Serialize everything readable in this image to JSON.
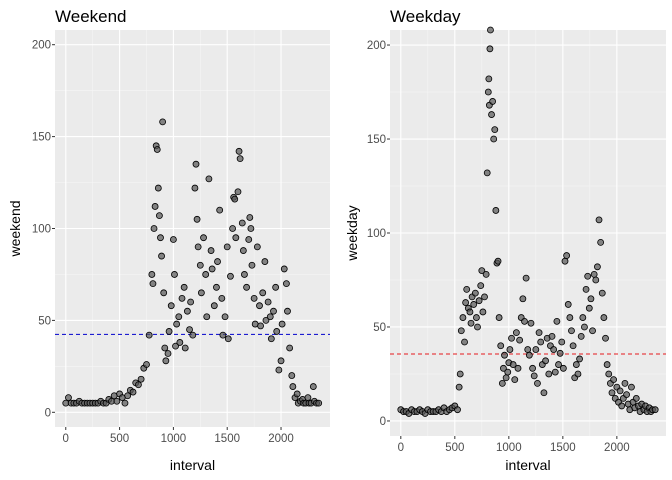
{
  "panels": [
    {
      "id": "weekend",
      "title": "Weekend",
      "xlabel": "interval",
      "ylabel": "weekend",
      "mean_line_color": "#0000cc",
      "x_ticks": [
        "0",
        "500",
        "1000",
        "1500",
        "2000"
      ],
      "y_ticks": [
        "0",
        "50",
        "100",
        "150",
        "200"
      ]
    },
    {
      "id": "weekday",
      "title": "Weekday",
      "xlabel": "interval",
      "ylabel": "weekday",
      "mean_line_color": "#e41a1c",
      "x_ticks": [
        "0",
        "500",
        "1000",
        "1500",
        "2000"
      ],
      "y_ticks": [
        "0",
        "50",
        "100",
        "150",
        "200"
      ]
    }
  ],
  "chart_data": [
    {
      "type": "scatter",
      "title": "Weekend",
      "xlabel": "interval",
      "ylabel": "weekend",
      "xlim": [
        -100,
        2455
      ],
      "ylim": [
        -8,
        208
      ],
      "x_ticks": [
        0,
        500,
        1000,
        1500,
        2000
      ],
      "y_ticks": [
        0,
        50,
        100,
        150,
        200
      ],
      "grid": true,
      "background": "#ebebeb",
      "point_color": "#555555",
      "mean_line": {
        "y": 42.4,
        "color": "#0000cc",
        "style": "dashed"
      },
      "points": [
        [
          0,
          5
        ],
        [
          25,
          8
        ],
        [
          50,
          5
        ],
        [
          75,
          5
        ],
        [
          100,
          5
        ],
        [
          125,
          6
        ],
        [
          150,
          5
        ],
        [
          175,
          5
        ],
        [
          200,
          5
        ],
        [
          225,
          5
        ],
        [
          250,
          5
        ],
        [
          275,
          5
        ],
        [
          300,
          5
        ],
        [
          325,
          6
        ],
        [
          350,
          5
        ],
        [
          375,
          5
        ],
        [
          400,
          7
        ],
        [
          425,
          6
        ],
        [
          450,
          9
        ],
        [
          475,
          6
        ],
        [
          500,
          10
        ],
        [
          525,
          8
        ],
        [
          550,
          5
        ],
        [
          575,
          9
        ],
        [
          600,
          12
        ],
        [
          625,
          11
        ],
        [
          650,
          16
        ],
        [
          675,
          15
        ],
        [
          700,
          18
        ],
        [
          725,
          24
        ],
        [
          750,
          26
        ],
        [
          775,
          42
        ],
        [
          800,
          75
        ],
        [
          810,
          70
        ],
        [
          820,
          100
        ],
        [
          830,
          112
        ],
        [
          840,
          145
        ],
        [
          850,
          143
        ],
        [
          860,
          122
        ],
        [
          870,
          107
        ],
        [
          880,
          95
        ],
        [
          890,
          85
        ],
        [
          900,
          158
        ],
        [
          910,
          65
        ],
        [
          920,
          35
        ],
        [
          930,
          28
        ],
        [
          950,
          32
        ],
        [
          960,
          44
        ],
        [
          980,
          58
        ],
        [
          1000,
          94
        ],
        [
          1010,
          75
        ],
        [
          1020,
          36
        ],
        [
          1030,
          48
        ],
        [
          1050,
          52
        ],
        [
          1060,
          38
        ],
        [
          1080,
          62
        ],
        [
          1100,
          68
        ],
        [
          1110,
          35
        ],
        [
          1130,
          55
        ],
        [
          1150,
          45
        ],
        [
          1160,
          60
        ],
        [
          1180,
          42
        ],
        [
          1200,
          122
        ],
        [
          1210,
          135
        ],
        [
          1220,
          105
        ],
        [
          1230,
          90
        ],
        [
          1250,
          80
        ],
        [
          1260,
          65
        ],
        [
          1280,
          95
        ],
        [
          1300,
          75
        ],
        [
          1310,
          52
        ],
        [
          1330,
          127
        ],
        [
          1350,
          88
        ],
        [
          1360,
          78
        ],
        [
          1380,
          58
        ],
        [
          1400,
          68
        ],
        [
          1410,
          82
        ],
        [
          1430,
          110
        ],
        [
          1450,
          62
        ],
        [
          1460,
          42
        ],
        [
          1480,
          52
        ],
        [
          1500,
          90
        ],
        [
          1510,
          40
        ],
        [
          1530,
          74
        ],
        [
          1550,
          100
        ],
        [
          1560,
          117
        ],
        [
          1570,
          116
        ],
        [
          1580,
          95
        ],
        [
          1600,
          120
        ],
        [
          1610,
          142
        ],
        [
          1620,
          138
        ],
        [
          1640,
          103
        ],
        [
          1650,
          88
        ],
        [
          1660,
          75
        ],
        [
          1680,
          68
        ],
        [
          1700,
          94
        ],
        [
          1710,
          106
        ],
        [
          1720,
          100
        ],
        [
          1730,
          80
        ],
        [
          1750,
          62
        ],
        [
          1760,
          48
        ],
        [
          1780,
          90
        ],
        [
          1800,
          58
        ],
        [
          1810,
          47
        ],
        [
          1830,
          65
        ],
        [
          1850,
          82
        ],
        [
          1860,
          50
        ],
        [
          1880,
          60
        ],
        [
          1900,
          52
        ],
        [
          1910,
          40
        ],
        [
          1930,
          55
        ],
        [
          1950,
          68
        ],
        [
          1960,
          44
        ],
        [
          1980,
          23
        ],
        [
          2000,
          28
        ],
        [
          2010,
          48
        ],
        [
          2030,
          78
        ],
        [
          2050,
          70
        ],
        [
          2060,
          55
        ],
        [
          2080,
          35
        ],
        [
          2100,
          20
        ],
        [
          2110,
          14
        ],
        [
          2130,
          8
        ],
        [
          2150,
          10
        ],
        [
          2160,
          5
        ],
        [
          2180,
          6
        ],
        [
          2200,
          7
        ],
        [
          2210,
          5
        ],
        [
          2230,
          5
        ],
        [
          2250,
          8
        ],
        [
          2260,
          5
        ],
        [
          2280,
          5
        ],
        [
          2300,
          14
        ],
        [
          2310,
          6
        ],
        [
          2330,
          5
        ],
        [
          2350,
          5
        ]
      ]
    },
    {
      "type": "scatter",
      "title": "Weekday",
      "xlabel": "interval",
      "ylabel": "weekday",
      "xlim": [
        -100,
        2455
      ],
      "ylim": [
        -8,
        208
      ],
      "x_ticks": [
        0,
        500,
        1000,
        1500,
        2000
      ],
      "y_ticks": [
        0,
        50,
        100,
        150,
        200
      ],
      "grid": true,
      "background": "#ebebeb",
      "point_color": "#555555",
      "mean_line": {
        "y": 35.6,
        "color": "#e41a1c",
        "style": "dashed"
      },
      "points": [
        [
          0,
          6
        ],
        [
          25,
          5
        ],
        [
          50,
          5
        ],
        [
          75,
          4
        ],
        [
          100,
          6
        ],
        [
          125,
          5
        ],
        [
          150,
          5
        ],
        [
          175,
          6
        ],
        [
          200,
          5
        ],
        [
          225,
          4
        ],
        [
          250,
          6
        ],
        [
          275,
          5
        ],
        [
          300,
          5
        ],
        [
          325,
          5
        ],
        [
          350,
          6
        ],
        [
          375,
          5
        ],
        [
          400,
          7
        ],
        [
          425,
          5
        ],
        [
          450,
          6
        ],
        [
          475,
          7
        ],
        [
          500,
          8
        ],
        [
          525,
          6
        ],
        [
          540,
          18
        ],
        [
          550,
          25
        ],
        [
          560,
          48
        ],
        [
          575,
          55
        ],
        [
          590,
          42
        ],
        [
          600,
          63
        ],
        [
          610,
          70
        ],
        [
          625,
          60
        ],
        [
          640,
          58
        ],
        [
          650,
          52
        ],
        [
          660,
          66
        ],
        [
          675,
          62
        ],
        [
          690,
          68
        ],
        [
          700,
          55
        ],
        [
          710,
          50
        ],
        [
          725,
          64
        ],
        [
          740,
          72
        ],
        [
          750,
          80
        ],
        [
          760,
          58
        ],
        [
          775,
          66
        ],
        [
          790,
          78
        ],
        [
          800,
          132
        ],
        [
          810,
          175
        ],
        [
          815,
          182
        ],
        [
          820,
          168
        ],
        [
          825,
          198
        ],
        [
          830,
          208
        ],
        [
          840,
          163
        ],
        [
          850,
          170
        ],
        [
          860,
          150
        ],
        [
          870,
          155
        ],
        [
          880,
          112
        ],
        [
          890,
          84
        ],
        [
          900,
          85
        ],
        [
          910,
          55
        ],
        [
          925,
          40
        ],
        [
          940,
          20
        ],
        [
          950,
          28
        ],
        [
          960,
          35
        ],
        [
          975,
          23
        ],
        [
          990,
          26
        ],
        [
          1000,
          31
        ],
        [
          1010,
          38
        ],
        [
          1025,
          44
        ],
        [
          1040,
          30
        ],
        [
          1055,
          22
        ],
        [
          1070,
          47
        ],
        [
          1085,
          28
        ],
        [
          1100,
          43
        ],
        [
          1115,
          55
        ],
        [
          1130,
          65
        ],
        [
          1145,
          53
        ],
        [
          1160,
          76
        ],
        [
          1175,
          38
        ],
        [
          1190,
          35
        ],
        [
          1205,
          52
        ],
        [
          1220,
          28
        ],
        [
          1235,
          24
        ],
        [
          1250,
          38
        ],
        [
          1265,
          20
        ],
        [
          1280,
          47
        ],
        [
          1295,
          42
        ],
        [
          1310,
          30
        ],
        [
          1325,
          15
        ],
        [
          1340,
          32
        ],
        [
          1355,
          44
        ],
        [
          1370,
          25
        ],
        [
          1385,
          40
        ],
        [
          1400,
          45
        ],
        [
          1415,
          38
        ],
        [
          1430,
          26
        ],
        [
          1445,
          53
        ],
        [
          1460,
          30
        ],
        [
          1475,
          36
        ],
        [
          1490,
          42
        ],
        [
          1505,
          28
        ],
        [
          1520,
          85
        ],
        [
          1535,
          88
        ],
        [
          1550,
          62
        ],
        [
          1565,
          55
        ],
        [
          1580,
          48
        ],
        [
          1595,
          40
        ],
        [
          1610,
          23
        ],
        [
          1625,
          30
        ],
        [
          1640,
          25
        ],
        [
          1655,
          33
        ],
        [
          1670,
          45
        ],
        [
          1685,
          55
        ],
        [
          1700,
          50
        ],
        [
          1715,
          70
        ],
        [
          1730,
          77
        ],
        [
          1745,
          60
        ],
        [
          1760,
          65
        ],
        [
          1775,
          48
        ],
        [
          1790,
          78
        ],
        [
          1805,
          75
        ],
        [
          1820,
          82
        ],
        [
          1835,
          107
        ],
        [
          1850,
          95
        ],
        [
          1865,
          68
        ],
        [
          1880,
          55
        ],
        [
          1895,
          44
        ],
        [
          1910,
          30
        ],
        [
          1925,
          25
        ],
        [
          1940,
          20
        ],
        [
          1955,
          15
        ],
        [
          1970,
          22
        ],
        [
          1985,
          12
        ],
        [
          2000,
          18
        ],
        [
          2015,
          10
        ],
        [
          2030,
          16
        ],
        [
          2045,
          8
        ],
        [
          2060,
          12
        ],
        [
          2075,
          20
        ],
        [
          2090,
          14
        ],
        [
          2105,
          9
        ],
        [
          2120,
          6
        ],
        [
          2135,
          18
        ],
        [
          2150,
          10
        ],
        [
          2165,
          7
        ],
        [
          2180,
          12
        ],
        [
          2200,
          8
        ],
        [
          2215,
          5
        ],
        [
          2230,
          9
        ],
        [
          2250,
          6
        ],
        [
          2265,
          8
        ],
        [
          2280,
          5
        ],
        [
          2300,
          7
        ],
        [
          2315,
          5
        ],
        [
          2330,
          6
        ],
        [
          2355,
          6
        ]
      ]
    }
  ]
}
